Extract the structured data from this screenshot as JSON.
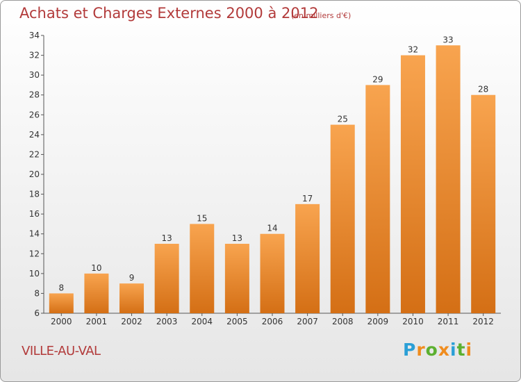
{
  "header": {
    "title": "Achats et Charges Externes 2000 à 2012",
    "subtitle": "(en milliers d'€)"
  },
  "footer": {
    "commune": "VILLE-AU-VAL",
    "brand": "Proxiti"
  },
  "colors": {
    "bar_top": "#f8a44f",
    "bar_bottom": "#d46f15",
    "text_red": "#b23a3a",
    "brand_blue": "#2a9fd6",
    "brand_green": "#5cb030",
    "brand_orange": "#f08c1e"
  },
  "chart_data": {
    "type": "bar",
    "title": "Achats et Charges Externes 2000 à 2012",
    "subtitle": "(en milliers d'€)",
    "categories": [
      "2000",
      "2001",
      "2002",
      "2003",
      "2004",
      "2005",
      "2006",
      "2007",
      "2008",
      "2009",
      "2010",
      "2011",
      "2012"
    ],
    "values": [
      8,
      10,
      9,
      13,
      15,
      13,
      14,
      17,
      25,
      29,
      32,
      33,
      28
    ],
    "xlabel": "",
    "ylabel": "",
    "ylim": [
      6,
      34
    ],
    "yticks": [
      6,
      8,
      10,
      12,
      14,
      16,
      18,
      20,
      22,
      24,
      26,
      28,
      30,
      32,
      34
    ],
    "grid": false,
    "legend": "none"
  }
}
